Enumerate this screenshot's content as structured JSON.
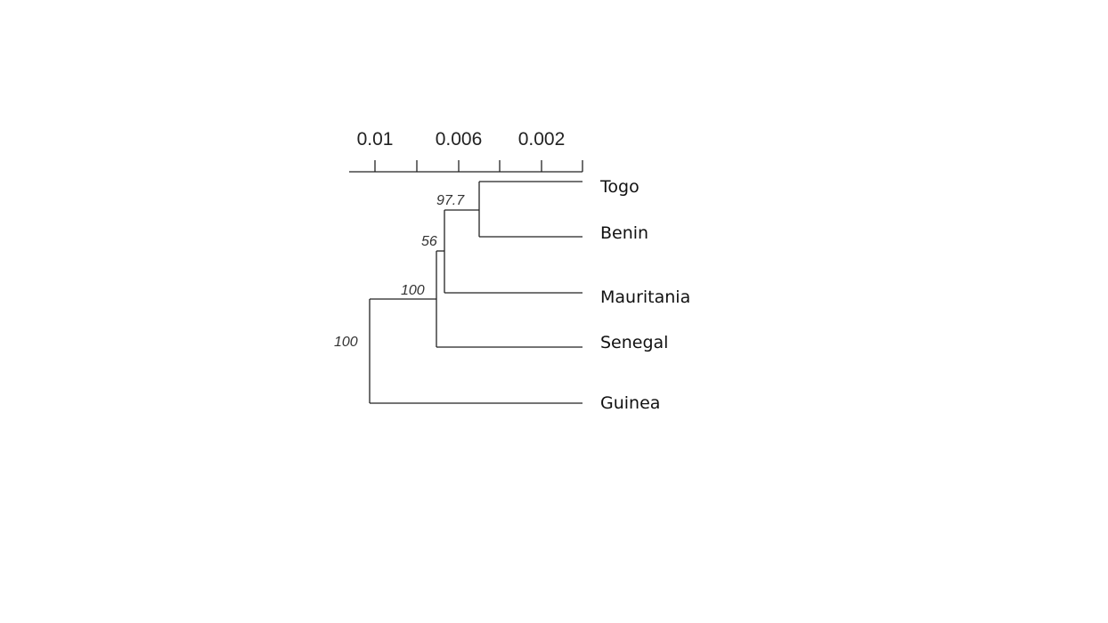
{
  "scale": {
    "tick_labels": [
      "0.01",
      "0.006",
      "0.002"
    ]
  },
  "taxa": [
    "Togo",
    "Benin",
    "Mauritania",
    "Senegal",
    "Guinea"
  ],
  "node_support": {
    "togo_benin": "97.7",
    "mauritania_clade": "56",
    "senegal_clade": "100",
    "root": "100"
  },
  "colors": {
    "line": "#222222",
    "text": "#111111"
  }
}
